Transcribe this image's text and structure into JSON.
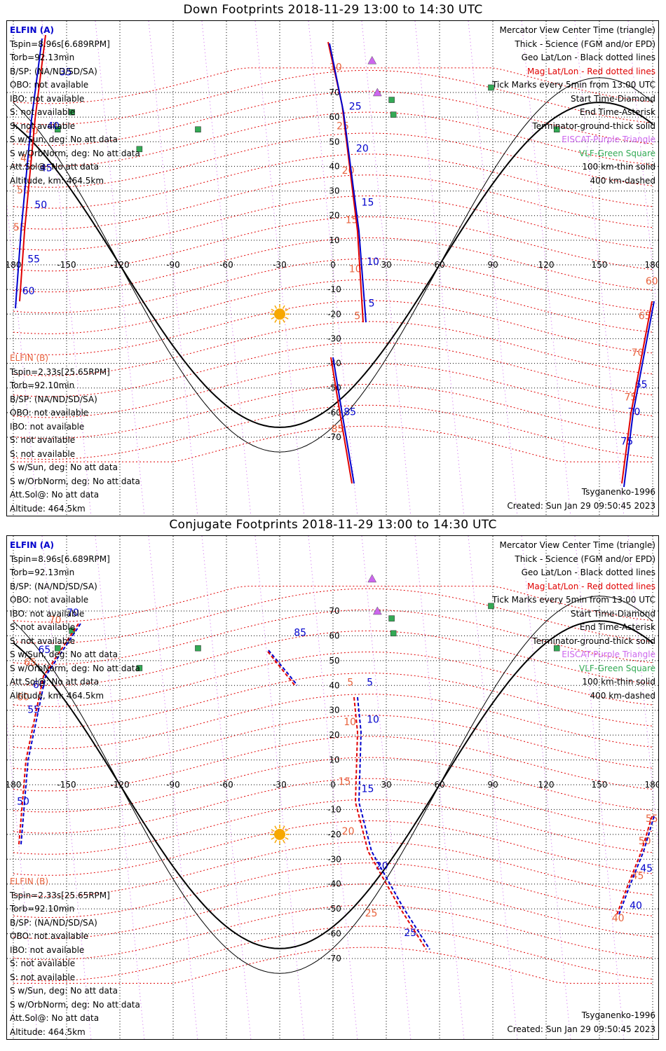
{
  "panels": [
    {
      "id": "down",
      "title": "Down Footprints 2018-11-29 13:00 to 14:30 UTC",
      "elfin_a": {
        "name": "ELFIN (A)",
        "lines": [
          "Tspin=8.96s[6.689RPM]",
          "Torb=92.13min",
          "B/SP: (NA/ND/SD/SA)",
          "OBO: not available",
          "IBO: not available",
          "S: not available",
          "S: not available",
          "S w/Sun, deg: No att data",
          "S w/OrbNorm, deg: No att data",
          "Att.Sol@: No att data",
          "Altitude, km: 464.5km"
        ]
      },
      "elfin_b": {
        "name": "ELFIN (B)",
        "lines": [
          "Tspin=2.33s[25.65RPM]",
          "Torb=92.10min",
          "B/SP: (NA/ND/SD/SA)",
          "OBO: not available",
          "IBO: not available",
          "S: not available",
          "S: not available",
          "S w/Sun, deg: No att data",
          "S w/OrbNorm, deg: No att data",
          "Att.Sol@: No att data",
          "Altitude: 464.5km"
        ]
      },
      "legend": [
        {
          "text": "Mercator View Center Time (triangle)",
          "color": "#000000"
        },
        {
          "text": "Thick - Science (FGM and/or EPD)",
          "color": "#000000"
        },
        {
          "text": "Geo Lat/Lon - Black dotted lines",
          "color": "#000000"
        },
        {
          "text": "Mag Lat/Lon - Red dotted lines",
          "color": "#e00000"
        },
        {
          "text": "Tick Marks every 5min from 13:00 UTC",
          "color": "#000000"
        },
        {
          "text": "Start Time-Diamond",
          "color": "#000000"
        },
        {
          "text": "End Time-Asterisk",
          "color": "#000000"
        },
        {
          "text": "Terminator-ground-thick solid",
          "color": "#000000"
        },
        {
          "text": "EISCAT-Purple Triangle",
          "color": "#cc66ee"
        },
        {
          "text": "VLF-Green Square",
          "color": "#33aa55"
        },
        {
          "text": "100 km-thin solid",
          "color": "#000000"
        },
        {
          "text": "400 km-dashed",
          "color": "#000000"
        }
      ],
      "model": "Tsyganenko-1996",
      "created": "Created: Sun Jan 29 09:50:45 2023",
      "lon_ticks": [
        "180",
        "-150",
        "-120",
        "-90",
        "-60",
        "-30",
        "0",
        "30",
        "60",
        "90",
        "120",
        "150",
        "180"
      ],
      "lat_ticks": [
        "70",
        "60",
        "50",
        "40",
        "30",
        "20",
        "10",
        "-10",
        "-20",
        "-30",
        "-40",
        "-50",
        "-60",
        "-70"
      ],
      "track_a_labels": [
        {
          "t": "35",
          "lon": -154,
          "lat": 77
        },
        {
          "t": "40",
          "lon": -161,
          "lat": 55
        },
        {
          "t": "45",
          "lon": -165,
          "lat": 38
        },
        {
          "t": "50",
          "lon": -168,
          "lat": 23
        },
        {
          "t": "55",
          "lon": -172,
          "lat": 1
        },
        {
          "t": "60",
          "lon": -175,
          "lat": -12
        },
        {
          "t": "65",
          "lon": 170,
          "lat": -50
        },
        {
          "t": "70",
          "lon": 166,
          "lat": -61
        },
        {
          "t": "75",
          "lon": 162,
          "lat": -73
        },
        {
          "t": "5",
          "lon": 20,
          "lat": -17
        },
        {
          "t": "10",
          "lon": 19,
          "lat": 0
        },
        {
          "t": "15",
          "lon": 16,
          "lat": 24
        },
        {
          "t": "20",
          "lon": 13,
          "lat": 46
        },
        {
          "t": "25",
          "lon": 9,
          "lat": 63
        },
        {
          "t": "85",
          "lon": 6,
          "lat": -61
        }
      ],
      "track_b_labels": [
        {
          "t": "30",
          "lon": -2,
          "lat": 79
        },
        {
          "t": "40",
          "lon": -173,
          "lat": 53
        },
        {
          "t": "45",
          "lon": -176,
          "lat": 42
        },
        {
          "t": "50",
          "lon": -178,
          "lat": 29
        },
        {
          "t": "55",
          "lon": -180,
          "lat": 14
        },
        {
          "t": "60",
          "lon": 176,
          "lat": -8
        },
        {
          "t": "65",
          "lon": 172,
          "lat": -22
        },
        {
          "t": "70",
          "lon": 168,
          "lat": -37
        },
        {
          "t": "75",
          "lon": 164,
          "lat": -55
        },
        {
          "t": "25",
          "lon": 2,
          "lat": 55
        },
        {
          "t": "20",
          "lon": 5,
          "lat": 37
        },
        {
          "t": "15",
          "lon": 7,
          "lat": 17
        },
        {
          "t": "10",
          "lon": 9,
          "lat": -3
        },
        {
          "t": "5",
          "lon": 12,
          "lat": -22
        },
        {
          "t": "85",
          "lon": -1,
          "lat": -68
        }
      ]
    },
    {
      "id": "conjugate",
      "title": "Conjugate Footprints 2018-11-29 13:00 to 14:30 UTC",
      "elfin_a": {
        "name": "ELFIN (A)",
        "lines": [
          "Tspin=8.96s[6.689RPM]",
          "Torb=92.13min",
          "B/SP: (NA/ND/SD/SA)",
          "OBO: not available",
          "IBO: not available",
          "S: not available",
          "S: not available",
          "S w/Sun, deg: No att data",
          "S w/OrbNorm, deg: No att data",
          "Att.Sol@: No att data",
          "Altitude, km: 464.5km"
        ]
      },
      "elfin_b": {
        "name": "ELFIN (B)",
        "lines": [
          "Tspin=2.33s[25.65RPM]",
          "Torb=92.10min",
          "B/SP: (NA/ND/SD/SA)",
          "OBO: not available",
          "IBO: not available",
          "S: not available",
          "S: not available",
          "S w/Sun, deg: No att data",
          "S w/OrbNorm, deg: No att data",
          "Att.Sol@: No att data",
          "Altitude: 464.5km"
        ]
      },
      "legend": [
        {
          "text": "Mercator View Center Time (triangle)",
          "color": "#000000"
        },
        {
          "text": "Thick - Science (FGM and/or EPD)",
          "color": "#000000"
        },
        {
          "text": "Geo Lat/Lon - Black dotted lines",
          "color": "#000000"
        },
        {
          "text": "Mag Lat/Lon - Red dotted lines",
          "color": "#e00000"
        },
        {
          "text": "Tick Marks every 5min from 13:00 UTC",
          "color": "#000000"
        },
        {
          "text": "Start Time-Diamond",
          "color": "#000000"
        },
        {
          "text": "End Time-Asterisk",
          "color": "#000000"
        },
        {
          "text": "Terminator-ground-thick solid",
          "color": "#000000"
        },
        {
          "text": "EISCAT-Purple Triangle",
          "color": "#cc66ee"
        },
        {
          "text": "VLF-Green Square",
          "color": "#33aa55"
        },
        {
          "text": "100 km-thin solid",
          "color": "#000000"
        },
        {
          "text": "400 km-dashed",
          "color": "#000000"
        }
      ],
      "model": "Tsyganenko-1996",
      "created": "Created: Sun Jan 29 09:50:45 2023",
      "lon_ticks": [
        "180",
        "-150",
        "-120",
        "-90",
        "-60",
        "-30",
        "0",
        "30",
        "60",
        "90",
        "120",
        "150",
        "180"
      ],
      "lat_ticks": [
        "70",
        "60",
        "50",
        "40",
        "30",
        "20",
        "10",
        "-10",
        "-20",
        "-30",
        "-40",
        "-50",
        "-60",
        "-70"
      ],
      "track_a_labels": [
        {
          "t": "70",
          "lon": -150,
          "lat": 68
        },
        {
          "t": "65",
          "lon": -166,
          "lat": 53
        },
        {
          "t": "60",
          "lon": -169,
          "lat": 39
        },
        {
          "t": "55",
          "lon": -172,
          "lat": 29
        },
        {
          "t": "50",
          "lon": -178,
          "lat": -8
        },
        {
          "t": "85",
          "lon": -22,
          "lat": 60
        },
        {
          "t": "5",
          "lon": 19,
          "lat": 40
        },
        {
          "t": "10",
          "lon": 19,
          "lat": 25
        },
        {
          "t": "15",
          "lon": 16,
          "lat": -3
        },
        {
          "t": "20",
          "lon": 24,
          "lat": -34
        },
        {
          "t": "25",
          "lon": 40,
          "lat": -61
        },
        {
          "t": "40",
          "lon": 167,
          "lat": -50
        },
        {
          "t": "45",
          "lon": 173,
          "lat": -35
        }
      ],
      "track_b_labels": [
        {
          "t": "70",
          "lon": -160,
          "lat": 65
        },
        {
          "t": "65",
          "lon": -174,
          "lat": 48
        },
        {
          "t": "60",
          "lon": -178,
          "lat": 34
        },
        {
          "t": "5",
          "lon": 8,
          "lat": 40
        },
        {
          "t": "10",
          "lon": 6,
          "lat": 24
        },
        {
          "t": "15",
          "lon": 3,
          "lat": 0
        },
        {
          "t": "20",
          "lon": 5,
          "lat": -20
        },
        {
          "t": "25",
          "lon": 18,
          "lat": -53
        },
        {
          "t": "55",
          "lon": 176,
          "lat": -15
        },
        {
          "t": "50",
          "lon": 172,
          "lat": -24
        },
        {
          "t": "45",
          "lon": 168,
          "lat": -38
        },
        {
          "t": "40",
          "lon": 157,
          "lat": -55
        }
      ]
    }
  ]
}
